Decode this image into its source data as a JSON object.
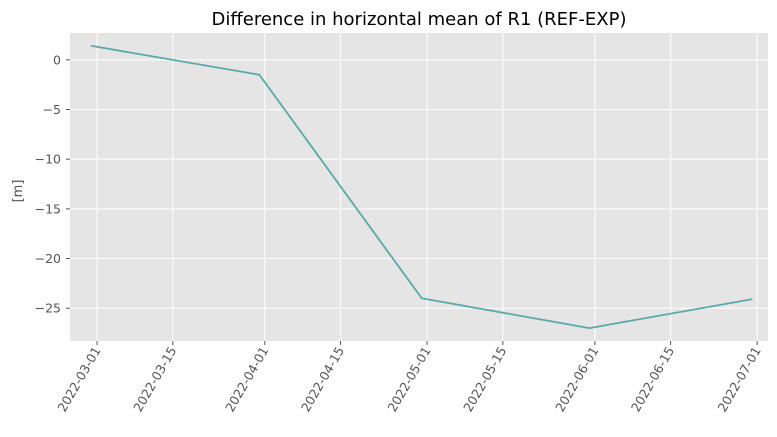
{
  "chart_data": {
    "type": "line",
    "title": "Difference in horizontal mean of R1 (REF-EXP)",
    "xlabel": "",
    "ylabel": "[m]",
    "x_tick_labels": [
      "2022-03-01",
      "2022-03-15",
      "2022-04-01",
      "2022-04-15",
      "2022-05-01",
      "2022-05-15",
      "2022-06-01",
      "2022-06-15",
      "2022-07-01"
    ],
    "y_ticks": [
      0,
      -5,
      -10,
      -15,
      -20,
      -25
    ],
    "y_tick_labels": [
      "0",
      "−5",
      "−10",
      "−15",
      "−20",
      "−25"
    ],
    "ylim": [
      -28.3,
      2.7
    ],
    "xlim": [
      "2022-02-24",
      "2022-07-03"
    ],
    "grid": true,
    "series": [
      {
        "color": "#5ba8a8",
        "x": [
          "2022-02-28",
          "2022-03-31",
          "2022-04-30",
          "2022-05-31",
          "2022-06-30"
        ],
        "values": [
          1.4,
          -1.5,
          -24.0,
          -27.0,
          -24.1
        ]
      }
    ],
    "background_color": "#e5e5e5",
    "grid_color": "#ffffff"
  }
}
